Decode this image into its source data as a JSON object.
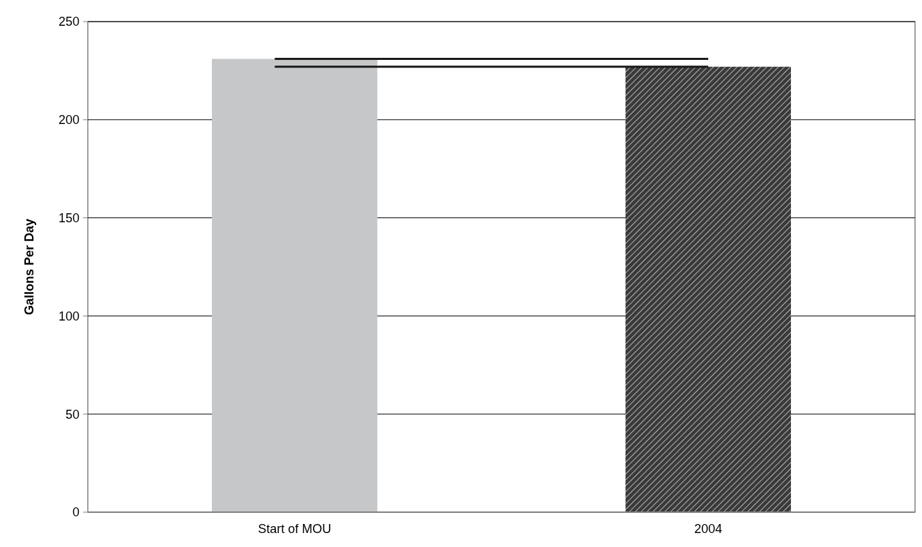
{
  "chart_data": {
    "type": "bar",
    "ylabel": "Gallons Per Day",
    "categories": [
      "Start of MOU",
      "2004"
    ],
    "values": [
      231,
      227
    ],
    "colors": [
      "#c6c7c9",
      "#3a3a3a"
    ],
    "ylim": [
      0,
      250
    ],
    "yticks": [
      0,
      50,
      100,
      150,
      200,
      250
    ],
    "grid": "y",
    "ref_lines": [
      {
        "axis": "y",
        "value": 231,
        "color": "#1a1a1a"
      },
      {
        "axis": "y",
        "value": 227,
        "color": "#1a1a1a"
      }
    ]
  }
}
